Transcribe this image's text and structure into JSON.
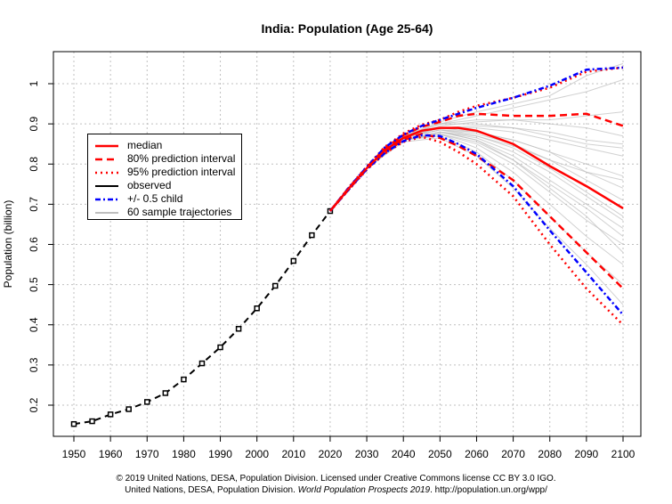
{
  "chart_data": {
    "type": "line",
    "title": "India: Population (Age 25-64)",
    "xlabel": "",
    "ylabel": "Population (billion)",
    "xlim": [
      1945,
      2105
    ],
    "ylim": [
      0.12,
      1.08
    ],
    "xticks": [
      1950,
      1960,
      1970,
      1980,
      1990,
      2000,
      2010,
      2020,
      2030,
      2040,
      2050,
      2060,
      2070,
      2080,
      2090,
      2100
    ],
    "yticks": [
      0.2,
      0.3,
      0.4,
      0.5,
      0.6,
      0.7,
      0.8,
      0.9,
      1
    ],
    "grid": true,
    "legend_position": "top-left",
    "series": [
      {
        "name": "observed",
        "color": "#000000",
        "style": "dashed-markers",
        "x": [
          1950,
          1955,
          1960,
          1965,
          1970,
          1975,
          1980,
          1985,
          1990,
          1995,
          2000,
          2005,
          2010,
          2015,
          2020
        ],
        "y": [
          0.153,
          0.16,
          0.177,
          0.19,
          0.208,
          0.23,
          0.264,
          0.304,
          0.344,
          0.39,
          0.441,
          0.497,
          0.559,
          0.623,
          0.683
        ]
      },
      {
        "name": "95% prediction interval",
        "color": "#ff0000",
        "style": "dotted",
        "x": [
          2020,
          2025,
          2030,
          2035,
          2040,
          2045,
          2050,
          2055,
          2060,
          2070,
          2080,
          2090,
          2100
        ],
        "y": [
          0.683,
          0.741,
          0.794,
          0.843,
          0.876,
          0.898,
          0.91,
          0.93,
          0.945,
          0.965,
          0.99,
          1.03,
          1.04
        ]
      },
      {
        "name": "95% prediction interval (lower)",
        "color": "#ff0000",
        "style": "dotted",
        "x": [
          2020,
          2025,
          2030,
          2035,
          2040,
          2045,
          2050,
          2055,
          2060,
          2070,
          2080,
          2090,
          2100
        ],
        "y": [
          0.683,
          0.735,
          0.786,
          0.827,
          0.855,
          0.868,
          0.855,
          0.83,
          0.8,
          0.72,
          0.6,
          0.49,
          0.4
        ]
      },
      {
        "name": "80% prediction interval",
        "color": "#ff0000",
        "style": "dashed",
        "x": [
          2020,
          2025,
          2030,
          2035,
          2040,
          2045,
          2050,
          2055,
          2060,
          2070,
          2080,
          2090,
          2100
        ],
        "y": [
          0.683,
          0.74,
          0.792,
          0.84,
          0.872,
          0.893,
          0.905,
          0.92,
          0.925,
          0.92,
          0.92,
          0.925,
          0.895
        ]
      },
      {
        "name": "80% prediction interval (lower)",
        "color": "#ff0000",
        "style": "dashed",
        "x": [
          2020,
          2025,
          2030,
          2035,
          2040,
          2045,
          2050,
          2055,
          2060,
          2070,
          2080,
          2090,
          2100
        ],
        "y": [
          0.683,
          0.736,
          0.788,
          0.83,
          0.86,
          0.875,
          0.865,
          0.845,
          0.82,
          0.76,
          0.67,
          0.58,
          0.49
        ]
      },
      {
        "name": "+/- 0.5 child",
        "color": "#0000ff",
        "style": "dashdot",
        "x": [
          2020,
          2025,
          2030,
          2035,
          2040,
          2045,
          2050,
          2055,
          2060,
          2070,
          2080,
          2090,
          2100
        ],
        "y": [
          0.683,
          0.74,
          0.793,
          0.842,
          0.873,
          0.895,
          0.91,
          0.925,
          0.94,
          0.965,
          0.995,
          1.035,
          1.04
        ]
      },
      {
        "name": "+/- 0.5 child (lower)",
        "color": "#0000ff",
        "style": "dashdot",
        "x": [
          2020,
          2025,
          2030,
          2035,
          2040,
          2045,
          2050,
          2055,
          2060,
          2070,
          2080,
          2090,
          2100
        ],
        "y": [
          0.683,
          0.736,
          0.787,
          0.828,
          0.857,
          0.872,
          0.87,
          0.85,
          0.825,
          0.745,
          0.635,
          0.53,
          0.425
        ]
      },
      {
        "name": "median",
        "color": "#ff0000",
        "style": "solid",
        "x": [
          2020,
          2025,
          2030,
          2035,
          2040,
          2045,
          2050,
          2055,
          2060,
          2070,
          2080,
          2090,
          2100
        ],
        "y": [
          0.683,
          0.738,
          0.79,
          0.835,
          0.865,
          0.883,
          0.89,
          0.89,
          0.883,
          0.85,
          0.795,
          0.745,
          0.69
        ]
      }
    ],
    "trajectories": {
      "name": "60 sample trajectories",
      "color": "#bebebe",
      "x": [
        2020,
        2030,
        2040,
        2050,
        2060,
        2070,
        2080,
        2090,
        2100
      ],
      "y": [
        [
          0.683,
          0.79,
          0.865,
          0.89,
          0.88,
          0.86,
          0.83,
          0.8,
          0.77
        ],
        [
          0.683,
          0.79,
          0.86,
          0.88,
          0.86,
          0.82,
          0.76,
          0.7,
          0.64
        ],
        [
          0.683,
          0.79,
          0.87,
          0.9,
          0.91,
          0.91,
          0.9,
          0.89,
          0.87
        ],
        [
          0.683,
          0.79,
          0.86,
          0.875,
          0.84,
          0.78,
          0.7,
          0.62,
          0.55
        ],
        [
          0.683,
          0.79,
          0.87,
          0.9,
          0.92,
          0.94,
          0.96,
          0.98,
          1.01
        ],
        [
          0.683,
          0.79,
          0.865,
          0.885,
          0.87,
          0.84,
          0.79,
          0.73,
          0.67
        ],
        [
          0.683,
          0.79,
          0.86,
          0.87,
          0.83,
          0.76,
          0.67,
          0.58,
          0.5
        ],
        [
          0.683,
          0.79,
          0.865,
          0.89,
          0.89,
          0.88,
          0.86,
          0.84,
          0.82
        ],
        [
          0.683,
          0.79,
          0.86,
          0.88,
          0.865,
          0.83,
          0.78,
          0.72,
          0.66
        ],
        [
          0.683,
          0.79,
          0.87,
          0.9,
          0.9,
          0.89,
          0.87,
          0.85,
          0.84
        ],
        [
          0.683,
          0.79,
          0.865,
          0.885,
          0.875,
          0.85,
          0.81,
          0.76,
          0.71
        ],
        [
          0.683,
          0.79,
          0.86,
          0.875,
          0.85,
          0.8,
          0.73,
          0.66,
          0.6
        ],
        [
          0.683,
          0.79,
          0.87,
          0.905,
          0.93,
          0.95,
          0.97,
          1.02,
          1.05
        ],
        [
          0.683,
          0.79,
          0.86,
          0.88,
          0.87,
          0.845,
          0.81,
          0.78,
          0.74
        ],
        [
          0.683,
          0.79,
          0.855,
          0.865,
          0.82,
          0.74,
          0.64,
          0.55,
          0.45
        ],
        [
          0.683,
          0.79,
          0.865,
          0.89,
          0.895,
          0.89,
          0.88,
          0.86,
          0.85
        ],
        [
          0.683,
          0.79,
          0.86,
          0.88,
          0.86,
          0.81,
          0.74,
          0.67,
          0.58
        ],
        [
          0.683,
          0.79,
          0.865,
          0.895,
          0.905,
          0.91,
          0.91,
          0.92,
          0.93
        ],
        [
          0.683,
          0.79,
          0.86,
          0.875,
          0.855,
          0.81,
          0.75,
          0.69,
          0.62
        ],
        [
          0.683,
          0.79,
          0.865,
          0.885,
          0.88,
          0.86,
          0.83,
          0.78,
          0.76
        ]
      ]
    }
  },
  "legend": {
    "items": [
      {
        "label": "median",
        "color": "#ff0000",
        "style": "solid"
      },
      {
        "label": "80% prediction interval",
        "color": "#ff0000",
        "style": "dashed"
      },
      {
        "label": "95% prediction interval",
        "color": "#ff0000",
        "style": "dotted"
      },
      {
        "label": "observed",
        "color": "#000000",
        "style": "solid"
      },
      {
        "label": "+/- 0.5 child",
        "color": "#0000ff",
        "style": "dashdot"
      },
      {
        "label": "60 sample trajectories",
        "color": "#bebebe",
        "style": "solid"
      }
    ]
  },
  "footer": {
    "line1": "© 2019 United Nations, DESA, Population Division. Licensed under Creative Commons license CC BY 3.0 IGO.",
    "line2_prefix": "United Nations, DESA, Population Division. ",
    "line2_italic": "World Population Prospects 2019",
    "line2_suffix": ". http://population.un.org/wpp/"
  }
}
